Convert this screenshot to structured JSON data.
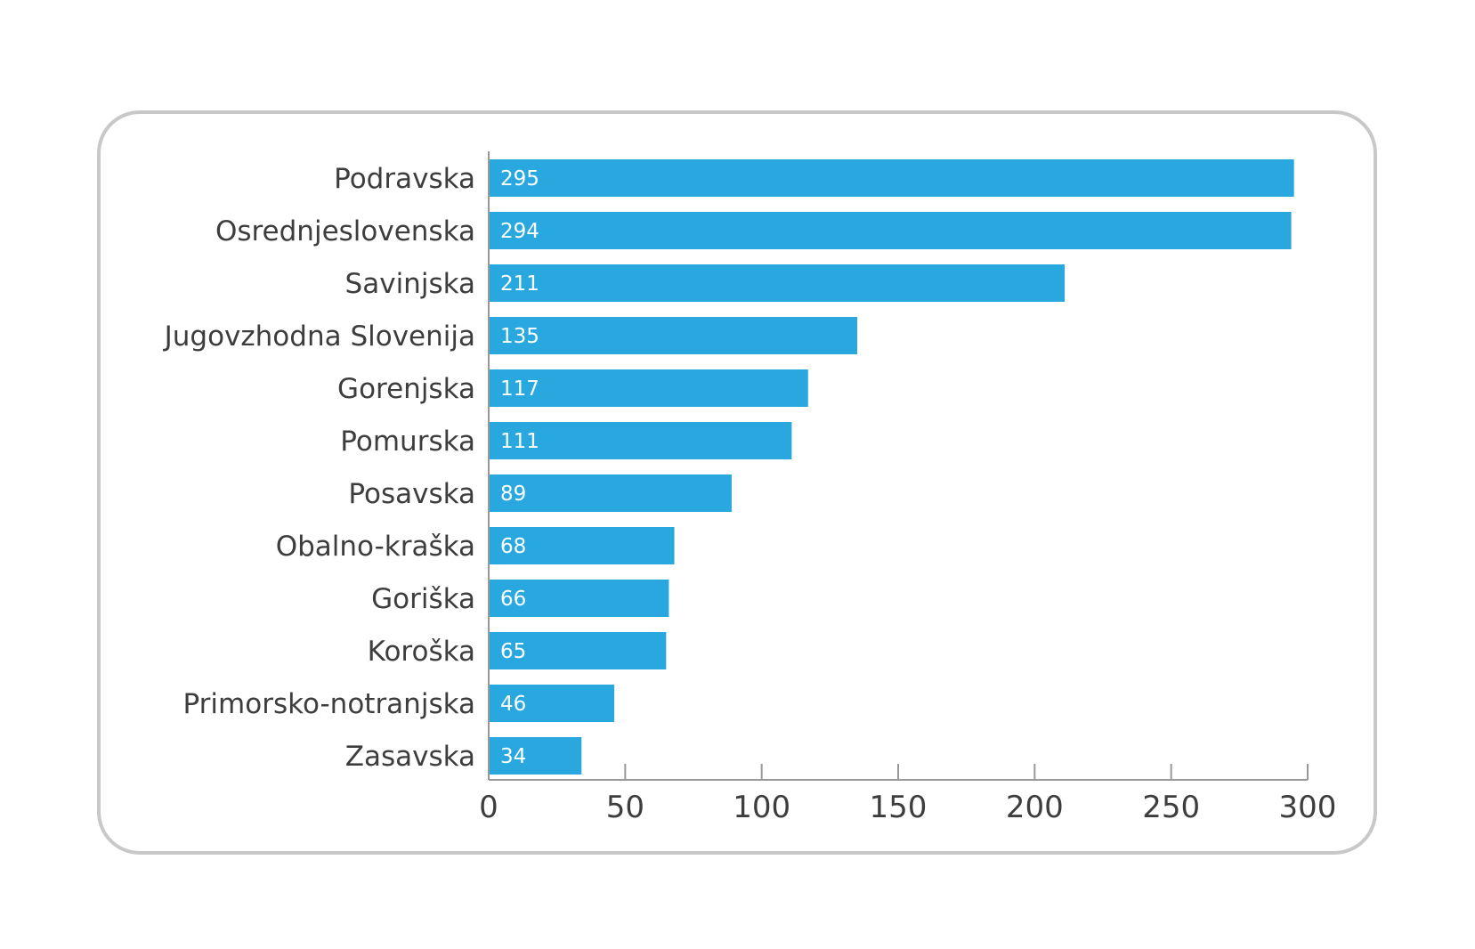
{
  "chart_data": {
    "type": "bar",
    "orientation": "horizontal",
    "categories": [
      "Podravska",
      "Osrednjeslovenska",
      "Savinjska",
      "Jugovzhodna Slovenija",
      "Gorenjska",
      "Pomurska",
      "Posavska",
      "Obalno-kraška",
      "Goriška",
      "Koroška",
      "Primorsko-notranjska",
      "Zasavska"
    ],
    "values": [
      295,
      294,
      211,
      135,
      117,
      111,
      89,
      68,
      66,
      65,
      46,
      34
    ],
    "data_labels": [
      "295",
      "294",
      "211",
      "135",
      "117",
      "111",
      "89",
      "68",
      "66",
      "65",
      "46",
      "34"
    ],
    "xlim": [
      0,
      300
    ],
    "xticks": [
      "0",
      "50",
      "100",
      "150",
      "200",
      "250",
      "300"
    ],
    "grid": false,
    "legend": "none",
    "bar_color": "#29a8e0",
    "axis_color": "#999999",
    "frame_color": "#c8c8c8"
  }
}
